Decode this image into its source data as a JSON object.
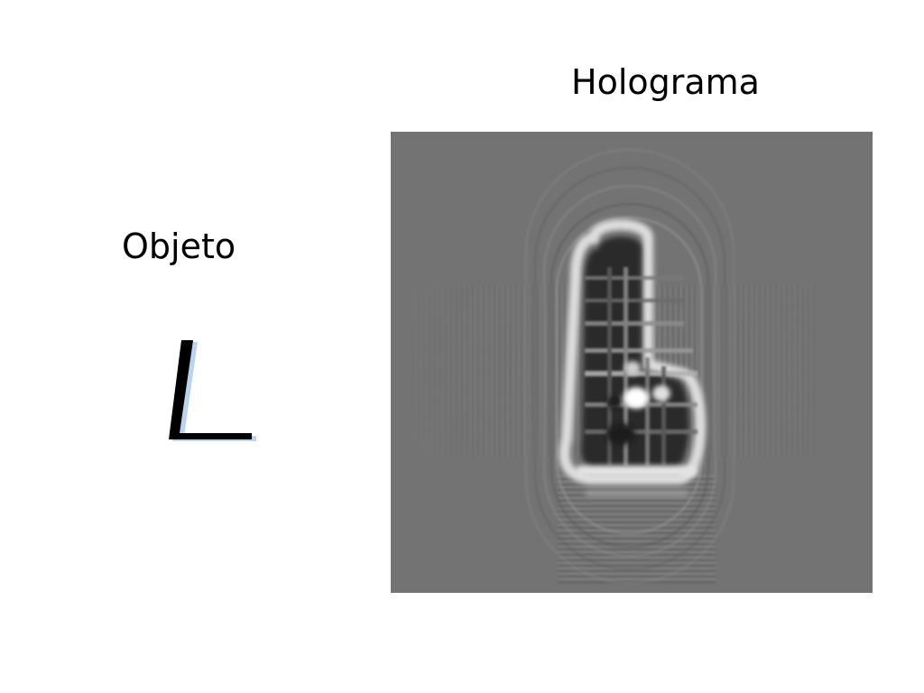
{
  "panels": {
    "object": {
      "title": "Objeto",
      "glyph": "letter-L-icon"
    },
    "hologram": {
      "title": "Holograma",
      "background_color": "#737373"
    }
  },
  "colors": {
    "page_background": "#ffffff",
    "text": "#000000",
    "object_ink": "#000000",
    "object_fringe": "#3b7fd4",
    "hologram_gray": "#737373"
  }
}
